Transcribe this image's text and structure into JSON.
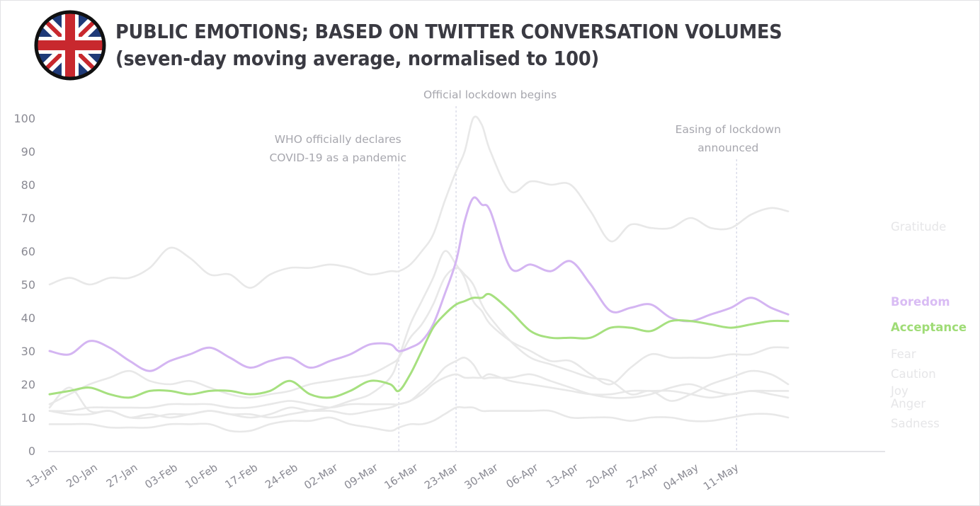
{
  "header": {
    "flag_icon": "union-jack-flag-icon",
    "title_line1": "PUBLIC EMOTIONS; BASED ON TWITTER CONVERSATION VOLUMES",
    "title_line2": "(seven-day moving average, normalised to 100)"
  },
  "chart_data": {
    "type": "line",
    "title": "PUBLIC EMOTIONS; BASED ON TWITTER CONVERSATION VOLUMES",
    "subtitle": "(seven-day moving average, normalised to 100)",
    "xlabel": "",
    "ylabel": "",
    "ylim": [
      0,
      100
    ],
    "yticks": [
      0,
      10,
      20,
      30,
      40,
      50,
      60,
      70,
      80,
      90,
      100
    ],
    "grid": false,
    "legend_placement": "right (direct labels at line ends)",
    "x_unit": "days since 13-Jan",
    "x_range": [
      0,
      129
    ],
    "xtick_labels": [
      "13-Jan",
      "20-Jan",
      "27-Jan",
      "03-Feb",
      "10-Feb",
      "17-Feb",
      "24-Feb",
      "02-Mar",
      "09-Mar",
      "16-Mar",
      "23-Mar",
      "30-Mar",
      "06-Apr",
      "13-Apr",
      "20-Apr",
      "27-Apr",
      "04-May",
      "11-May"
    ],
    "xtick_days": [
      0,
      7,
      14,
      21,
      28,
      35,
      42,
      49,
      56,
      63,
      70,
      77,
      84,
      91,
      98,
      105,
      112,
      119
    ],
    "annotations": [
      {
        "day": 61,
        "lines": [
          "WHO officially declares",
          "COVID-19 as a pandemic"
        ]
      },
      {
        "day": 71,
        "lines": [
          "Official lockdown begins"
        ]
      },
      {
        "day": 120,
        "lines": [
          "Easing of lockdown",
          "announced"
        ]
      }
    ],
    "x": [
      0,
      3.5,
      7,
      10.5,
      14,
      17.5,
      21,
      24.5,
      28,
      31.5,
      35,
      38.5,
      42,
      45.5,
      49,
      52.5,
      56,
      59.5,
      61,
      63,
      65,
      67,
      69,
      71,
      72.5,
      74,
      75.5,
      77,
      80.5,
      84,
      87.5,
      91,
      94.5,
      98,
      101.5,
      105,
      108.5,
      112,
      115.5,
      119,
      122.5,
      126,
      129
    ],
    "series": [
      {
        "name": "Gratitude",
        "color": "#e8e8e8",
        "label_color": "#e6e6e8",
        "highlight": false,
        "values": [
          50,
          52,
          50,
          52,
          52,
          55,
          61,
          58,
          53,
          53,
          49,
          53,
          55,
          55,
          56,
          55,
          53,
          54,
          54,
          56,
          60,
          65,
          75,
          84,
          90,
          100,
          98,
          90,
          78,
          81,
          80,
          80,
          72,
          63,
          68,
          67,
          67,
          70,
          67,
          67,
          71,
          73,
          72
        ]
      },
      {
        "name": "Boredom",
        "color": "#d4b5f2",
        "label_color": "#d9bcf4",
        "highlight": true,
        "values": [
          30,
          29,
          33,
          31,
          27,
          24,
          27,
          29,
          31,
          28,
          25,
          27,
          28,
          25,
          27,
          29,
          32,
          32,
          30,
          31,
          33,
          38,
          47,
          57,
          69,
          76,
          74,
          72,
          55,
          56,
          54,
          57,
          50,
          42,
          43,
          44,
          40,
          39,
          41,
          43,
          46,
          43,
          41
        ]
      },
      {
        "name": "Acceptance",
        "color": "#a6e07f",
        "label_color": "#9fdc76",
        "highlight": true,
        "values": [
          17,
          18,
          19,
          17,
          16,
          18,
          18,
          17,
          18,
          18,
          17,
          18,
          21,
          17,
          16,
          18,
          21,
          20,
          18,
          23,
          30,
          37,
          41,
          44,
          45,
          46,
          46,
          47,
          42,
          36,
          34,
          34,
          34,
          37,
          37,
          36,
          39,
          39,
          38,
          37,
          38,
          39,
          39
        ]
      },
      {
        "name": "Fear",
        "color": "#e8e8e8",
        "label_color": "#e6e6e8",
        "highlight": false,
        "values": [
          13,
          19,
          12,
          12,
          10,
          10,
          11,
          11,
          12,
          11,
          11,
          10,
          11,
          12,
          13,
          15,
          17,
          22,
          28,
          38,
          45,
          52,
          60,
          56,
          52,
          45,
          42,
          38,
          33,
          30,
          27,
          27,
          23,
          20,
          25,
          29,
          28,
          28,
          28,
          29,
          29,
          31,
          31
        ]
      },
      {
        "name": "Caution",
        "color": "#e8e8e8",
        "label_color": "#e6e6e8",
        "highlight": false,
        "values": [
          14,
          17,
          20,
          22,
          24,
          21,
          20,
          21,
          19,
          17,
          16,
          17,
          18,
          20,
          21,
          22,
          23,
          26,
          28,
          34,
          38,
          44,
          52,
          55,
          53,
          50,
          44,
          40,
          33,
          28,
          26,
          24,
          22,
          21,
          17,
          18,
          15,
          17,
          20,
          22,
          24,
          23,
          20
        ]
      },
      {
        "name": "Joy",
        "color": "#e8e8e8",
        "label_color": "#e6e6e8",
        "highlight": false,
        "values": [
          12,
          12,
          13,
          13,
          13,
          13,
          14,
          14,
          14,
          13,
          13,
          14,
          15,
          14,
          13,
          14,
          14,
          14,
          14,
          15,
          17,
          20,
          22,
          23,
          22,
          22,
          22,
          23,
          21,
          20,
          19,
          18,
          17,
          17,
          18,
          18,
          18,
          17,
          16,
          17,
          18,
          18,
          18
        ]
      },
      {
        "name": "Anger",
        "color": "#e8e8e8",
        "label_color": "#e6e6e8",
        "highlight": false,
        "values": [
          12,
          11,
          11,
          12,
          10,
          11,
          10,
          11,
          12,
          11,
          10,
          11,
          13,
          12,
          12,
          11,
          12,
          13,
          14,
          15,
          18,
          21,
          25,
          27,
          28,
          26,
          22,
          22,
          22,
          23,
          21,
          19,
          17,
          16,
          16,
          17,
          19,
          20,
          18,
          17,
          18,
          17,
          16
        ]
      },
      {
        "name": "Sadness",
        "color": "#e8e8e8",
        "label_color": "#e6e6e8",
        "highlight": false,
        "values": [
          8,
          8,
          8,
          7,
          7,
          7,
          8,
          8,
          8,
          6,
          6,
          8,
          9,
          9,
          10,
          8,
          7,
          6,
          7,
          8,
          8,
          9,
          11,
          13,
          13,
          13,
          12,
          12,
          12,
          12,
          12,
          10,
          10,
          10,
          9,
          10,
          10,
          9,
          9,
          10,
          11,
          11,
          10
        ]
      }
    ]
  }
}
